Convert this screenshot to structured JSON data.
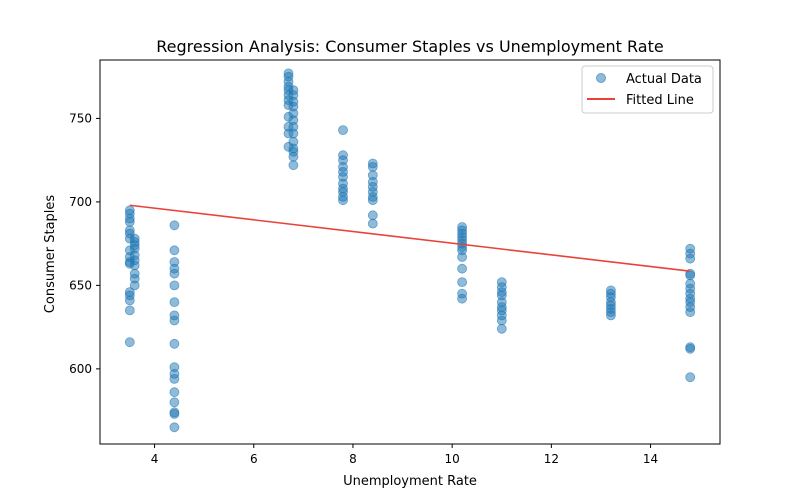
{
  "chart_data": {
    "type": "scatter",
    "title": "Regression Analysis: Consumer Staples vs Unemployment Rate",
    "xlabel": "Unemployment Rate",
    "ylabel": "Consumer Staples",
    "xlim": [
      2.9,
      15.4
    ],
    "ylim": [
      555,
      785
    ],
    "x_ticks": [
      4,
      6,
      8,
      10,
      12,
      14
    ],
    "y_ticks": [
      600,
      650,
      700,
      750
    ],
    "grid": false,
    "legend_position": "top-right",
    "colors": {
      "scatter": "#1f77b4",
      "line": "#e8423a"
    },
    "series": [
      {
        "name": "Actual Data",
        "type": "scatter",
        "points": [
          [
            3.5,
            695
          ],
          [
            3.5,
            693
          ],
          [
            3.5,
            690
          ],
          [
            3.5,
            688
          ],
          [
            3.5,
            683
          ],
          [
            3.5,
            681
          ],
          [
            3.5,
            678
          ],
          [
            3.5,
            671
          ],
          [
            3.5,
            667
          ],
          [
            3.5,
            664
          ],
          [
            3.5,
            663
          ],
          [
            3.5,
            646
          ],
          [
            3.5,
            644
          ],
          [
            3.5,
            641
          ],
          [
            3.5,
            635
          ],
          [
            3.5,
            616
          ],
          [
            3.6,
            678
          ],
          [
            3.6,
            676
          ],
          [
            3.6,
            674
          ],
          [
            3.6,
            672
          ],
          [
            3.6,
            668
          ],
          [
            3.6,
            665
          ],
          [
            3.6,
            662
          ],
          [
            3.6,
            657
          ],
          [
            3.6,
            654
          ],
          [
            3.6,
            650
          ],
          [
            4.4,
            686
          ],
          [
            4.4,
            671
          ],
          [
            4.4,
            664
          ],
          [
            4.4,
            660
          ],
          [
            4.4,
            657
          ],
          [
            4.4,
            650
          ],
          [
            4.4,
            640
          ],
          [
            4.4,
            632
          ],
          [
            4.4,
            629
          ],
          [
            4.4,
            615
          ],
          [
            4.4,
            601
          ],
          [
            4.4,
            597
          ],
          [
            4.4,
            594
          ],
          [
            4.4,
            586
          ],
          [
            4.4,
            580
          ],
          [
            4.4,
            574
          ],
          [
            4.4,
            573
          ],
          [
            4.4,
            565
          ],
          [
            6.7,
            777
          ],
          [
            6.7,
            775
          ],
          [
            6.7,
            772
          ],
          [
            6.7,
            769
          ],
          [
            6.7,
            767
          ],
          [
            6.7,
            764
          ],
          [
            6.7,
            761
          ],
          [
            6.7,
            758
          ],
          [
            6.7,
            751
          ],
          [
            6.7,
            745
          ],
          [
            6.7,
            741
          ],
          [
            6.7,
            733
          ],
          [
            6.8,
            767
          ],
          [
            6.8,
            764
          ],
          [
            6.8,
            760
          ],
          [
            6.8,
            757
          ],
          [
            6.8,
            753
          ],
          [
            6.8,
            749
          ],
          [
            6.8,
            745
          ],
          [
            6.8,
            741
          ],
          [
            6.8,
            736
          ],
          [
            6.8,
            732
          ],
          [
            6.8,
            730
          ],
          [
            6.8,
            727
          ],
          [
            6.8,
            722
          ],
          [
            7.8,
            743
          ],
          [
            7.8,
            728
          ],
          [
            7.8,
            725
          ],
          [
            7.8,
            721
          ],
          [
            7.8,
            718
          ],
          [
            7.8,
            715
          ],
          [
            7.8,
            711
          ],
          [
            7.8,
            708
          ],
          [
            7.8,
            706
          ],
          [
            7.8,
            703
          ],
          [
            7.8,
            701
          ],
          [
            8.4,
            723
          ],
          [
            8.4,
            721
          ],
          [
            8.4,
            716
          ],
          [
            8.4,
            712
          ],
          [
            8.4,
            709
          ],
          [
            8.4,
            706
          ],
          [
            8.4,
            703
          ],
          [
            8.4,
            701
          ],
          [
            8.4,
            692
          ],
          [
            8.4,
            687
          ],
          [
            10.2,
            685
          ],
          [
            10.2,
            683
          ],
          [
            10.2,
            681
          ],
          [
            10.2,
            679
          ],
          [
            10.2,
            677
          ],
          [
            10.2,
            675
          ],
          [
            10.2,
            673
          ],
          [
            10.2,
            671
          ],
          [
            10.2,
            667
          ],
          [
            10.2,
            660
          ],
          [
            10.2,
            652
          ],
          [
            10.2,
            645
          ],
          [
            10.2,
            642
          ],
          [
            11.0,
            652
          ],
          [
            11.0,
            649
          ],
          [
            11.0,
            646
          ],
          [
            11.0,
            644
          ],
          [
            11.0,
            640
          ],
          [
            11.0,
            637
          ],
          [
            11.0,
            635
          ],
          [
            11.0,
            632
          ],
          [
            11.0,
            629
          ],
          [
            11.0,
            624
          ],
          [
            13.2,
            647
          ],
          [
            13.2,
            645
          ],
          [
            13.2,
            643
          ],
          [
            13.2,
            640
          ],
          [
            13.2,
            638
          ],
          [
            13.2,
            636
          ],
          [
            13.2,
            634
          ],
          [
            13.2,
            632
          ],
          [
            14.8,
            672
          ],
          [
            14.8,
            669
          ],
          [
            14.8,
            666
          ],
          [
            14.8,
            657
          ],
          [
            14.8,
            656
          ],
          [
            14.8,
            651
          ],
          [
            14.8,
            648
          ],
          [
            14.8,
            645
          ],
          [
            14.8,
            642
          ],
          [
            14.8,
            640
          ],
          [
            14.8,
            637
          ],
          [
            14.8,
            634
          ],
          [
            14.8,
            613
          ],
          [
            14.8,
            612
          ],
          [
            14.8,
            595
          ]
        ]
      },
      {
        "name": "Fitted Line",
        "type": "line",
        "points": [
          [
            3.5,
            698
          ],
          [
            14.8,
            658.5
          ]
        ]
      }
    ]
  }
}
